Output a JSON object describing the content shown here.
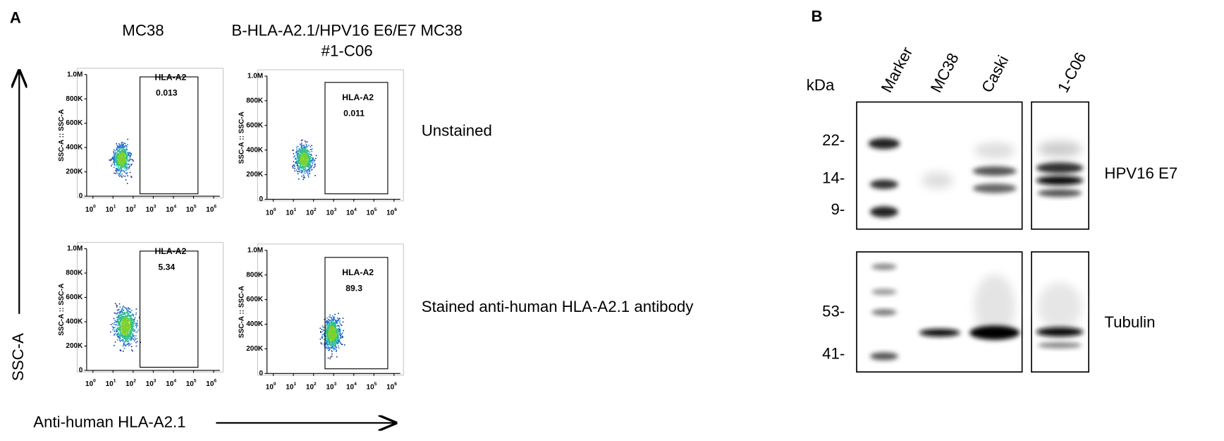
{
  "panel_a": {
    "label": "A",
    "column_headers": [
      "MC38",
      "B-HLA-A2.1/HPV16 E6/E7 MC38",
      "#1-C06"
    ],
    "row_labels": [
      "Unstained",
      "Stained anti-human HLA-A2.1 antibody"
    ],
    "y_axis_title": "SSC-A",
    "x_axis_title": "Anti-human HLA-A2.1",
    "flow_axes": {
      "y_title": "SSC-A :: SSC-A",
      "y_ticks": [
        "1.0M",
        "800K",
        "600K",
        "400K",
        "200K",
        "0"
      ],
      "x_ticks": [
        {
          "base": "10",
          "exp": "0"
        },
        {
          "base": "10",
          "exp": "1"
        },
        {
          "base": "10",
          "exp": "2"
        },
        {
          "base": "10",
          "exp": "3"
        },
        {
          "base": "10",
          "exp": "4"
        },
        {
          "base": "10",
          "exp": "5"
        },
        {
          "base": "10",
          "exp": "6"
        }
      ]
    },
    "plots": [
      {
        "gate": "HLA-A2",
        "value": "0.013"
      },
      {
        "gate": "HLA-A2",
        "value": "0.011"
      },
      {
        "gate": "HLA-A2",
        "value": "5.34"
      },
      {
        "gate": "HLA-A2",
        "value": "89.3"
      }
    ]
  },
  "panel_b": {
    "label": "B",
    "unit": "kDa",
    "lanes": [
      "Marker",
      "MC38",
      "Caski",
      "1-C06"
    ],
    "top_markers": [
      "22-",
      "14-",
      "9-"
    ],
    "bottom_markers": [
      "53-",
      "41-"
    ],
    "blot_labels": [
      "HPV16 E7",
      "Tubulin"
    ]
  }
}
